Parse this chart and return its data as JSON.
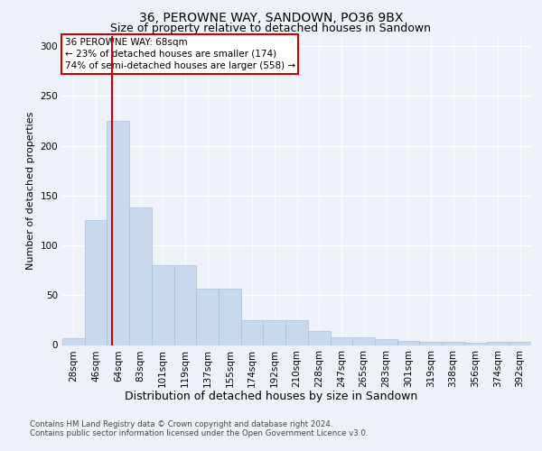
{
  "title1": "36, PEROWNE WAY, SANDOWN, PO36 9BX",
  "title2": "Size of property relative to detached houses in Sandown",
  "xlabel": "Distribution of detached houses by size in Sandown",
  "ylabel": "Number of detached properties",
  "categories": [
    "28sqm",
    "46sqm",
    "64sqm",
    "83sqm",
    "101sqm",
    "119sqm",
    "137sqm",
    "155sqm",
    "174sqm",
    "192sqm",
    "210sqm",
    "228sqm",
    "247sqm",
    "265sqm",
    "283sqm",
    "301sqm",
    "319sqm",
    "338sqm",
    "356sqm",
    "374sqm",
    "392sqm"
  ],
  "values": [
    7,
    125,
    225,
    138,
    80,
    80,
    57,
    57,
    25,
    25,
    25,
    14,
    8,
    8,
    6,
    4,
    3,
    3,
    2,
    3,
    3
  ],
  "bar_color": "#c9d9ed",
  "bar_edgecolor": "#a8bfd8",
  "vline_color": "#cc0000",
  "annotation_title": "36 PEROWNE WAY: 68sqm",
  "annotation_line1": "← 23% of detached houses are smaller (174)",
  "annotation_line2": "74% of semi-detached houses are larger (558) →",
  "annotation_box_color": "#cc0000",
  "ylim": [
    0,
    310
  ],
  "yticks": [
    0,
    50,
    100,
    150,
    200,
    250,
    300
  ],
  "footer1": "Contains HM Land Registry data © Crown copyright and database right 2024.",
  "footer2": "Contains public sector information licensed under the Open Government Licence v3.0.",
  "bg_color": "#eef2f8",
  "plot_bg_color": "#eef2f8",
  "title1_fontsize": 10,
  "title2_fontsize": 9,
  "ylabel_fontsize": 8,
  "xlabel_fontsize": 9,
  "tick_fontsize": 7.5,
  "annotation_fontsize": 7.5,
  "footer_fontsize": 6.2
}
